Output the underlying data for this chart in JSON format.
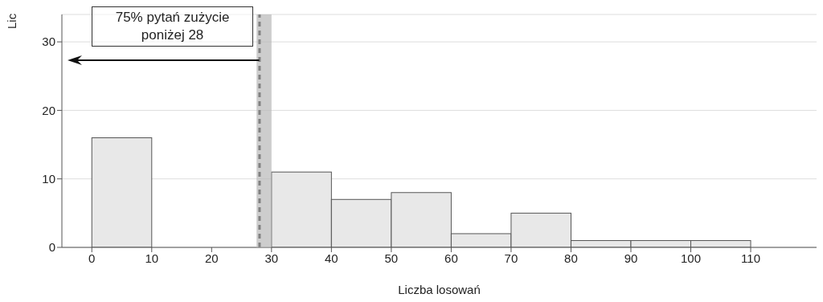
{
  "chart_data": {
    "type": "histogram",
    "xlabel": "Liczba losowań",
    "ylabel": "Lic",
    "bins": [
      0,
      10,
      20,
      30,
      40,
      50,
      60,
      70,
      80,
      90,
      100,
      110
    ],
    "values": [
      16,
      null,
      null,
      11,
      7,
      8,
      2,
      5,
      1,
      1,
      1
    ],
    "color": "#e8e8e8",
    "xlim": [
      -5,
      121
    ],
    "xticks": [
      0,
      10,
      20,
      30,
      40,
      50,
      60,
      70,
      80,
      90,
      100,
      110
    ],
    "ylim": [
      0,
      34
    ],
    "yticks": [
      0,
      10,
      20,
      30
    ],
    "grid": "y",
    "ref_lines": [
      {
        "axis": "x",
        "value": 28,
        "line_style": "dashed",
        "color": "#000000"
      }
    ],
    "bands": [
      {
        "axis": "x",
        "from": 27.5,
        "to": 30,
        "color": "#b8b8b8"
      }
    ],
    "annotations": [
      "75% pytań zużycie poniżej 28"
    ]
  }
}
